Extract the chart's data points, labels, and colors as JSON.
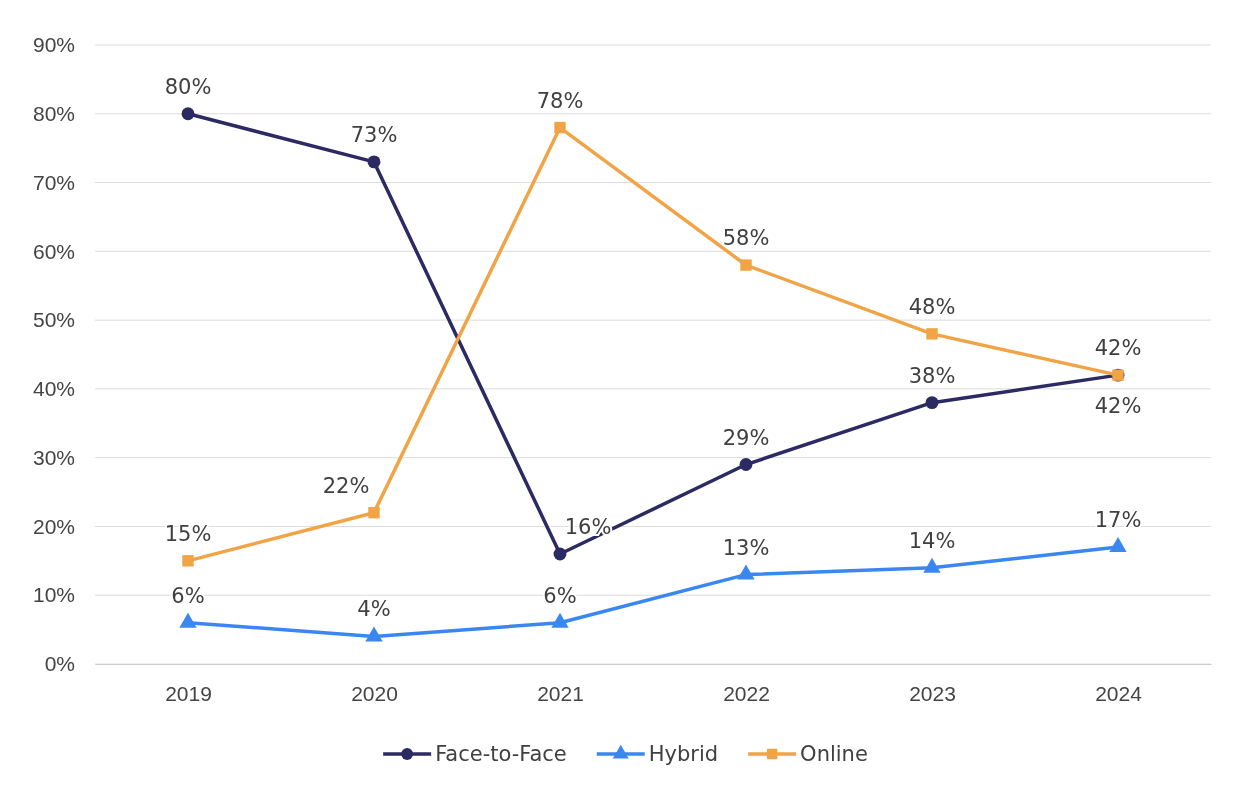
{
  "chart_data": {
    "type": "line",
    "categories": [
      "2019",
      "2020",
      "2021",
      "2022",
      "2023",
      "2024"
    ],
    "series": [
      {
        "name": "Face-to-Face",
        "color": "#2b2a63",
        "marker": "circle",
        "values": [
          80,
          73,
          16,
          29,
          38,
          42
        ],
        "value_labels": [
          "80%",
          "73%",
          "16%",
          "29%",
          "38%",
          "42%"
        ]
      },
      {
        "name": "Hybrid",
        "color": "#3b87f0",
        "marker": "triangle",
        "values": [
          6,
          4,
          6,
          13,
          14,
          17
        ],
        "value_labels": [
          "6%",
          "4%",
          "6%",
          "13%",
          "14%",
          "17%"
        ]
      },
      {
        "name": "Online",
        "color": "#f0a445",
        "marker": "square",
        "values": [
          15,
          22,
          78,
          58,
          48,
          42
        ],
        "value_labels": [
          "15%",
          "22%",
          "78%",
          "58%",
          "48%",
          "42%"
        ]
      }
    ],
    "ylim": [
      0,
      90
    ],
    "yticks": [
      {
        "value": 0,
        "label": "0%"
      },
      {
        "value": 10,
        "label": "10%"
      },
      {
        "value": 20,
        "label": "20%"
      },
      {
        "value": 30,
        "label": "30%"
      },
      {
        "value": 40,
        "label": "40%"
      },
      {
        "value": 50,
        "label": "50%"
      },
      {
        "value": 60,
        "label": "60%"
      },
      {
        "value": 70,
        "label": "70%"
      },
      {
        "value": 80,
        "label": "80%"
      },
      {
        "value": 90,
        "label": "90%"
      }
    ],
    "grid": "y",
    "legend": "bottom",
    "line_style": "solid"
  }
}
